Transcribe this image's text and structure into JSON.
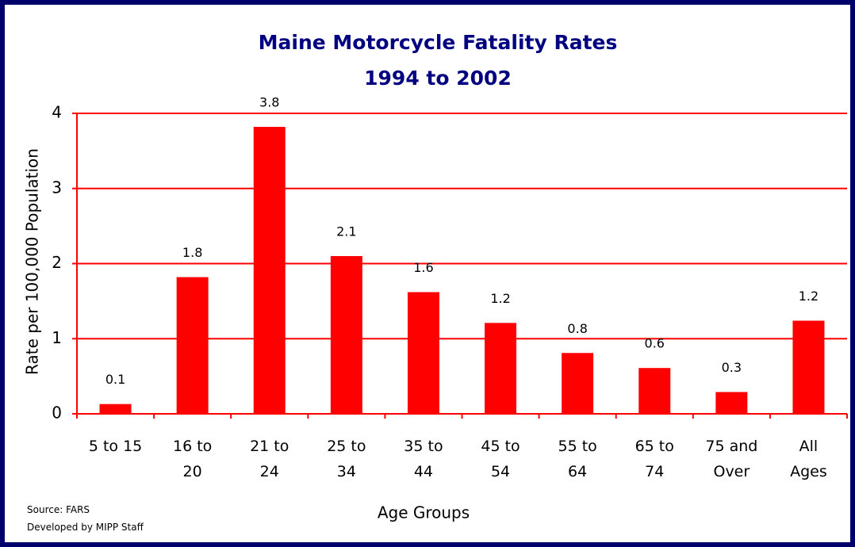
{
  "chart_data": {
    "type": "bar",
    "title": "Maine Motorcycle Fatality Rates",
    "subtitle": "1994 to 2002",
    "y_label": "Rate per 100,000 Population",
    "x_label": "Age Groups",
    "notes": [
      "Source:  FARS",
      "Developed by MIPP Staff"
    ],
    "categories": [
      "5 to 15",
      "16 to 20",
      "21 to 24",
      "25 to 34",
      "35 to 44",
      "45 to 54",
      "55 to 64",
      "65 to 74",
      "75 and Over",
      "All Ages"
    ],
    "values": [
      0.13,
      1.82,
      3.82,
      2.1,
      1.62,
      1.21,
      0.81,
      0.61,
      0.29,
      1.24
    ],
    "value_labels": [
      "0.1",
      "1.8",
      "3.8",
      "2.1",
      "1.6",
      "1.2",
      "0.8",
      "0.6",
      "0.3",
      "1.2"
    ],
    "color": "#ff0000",
    "ylim": [
      0,
      4
    ],
    "yticks": [
      0,
      1,
      2,
      3,
      4
    ],
    "grid": true
  }
}
